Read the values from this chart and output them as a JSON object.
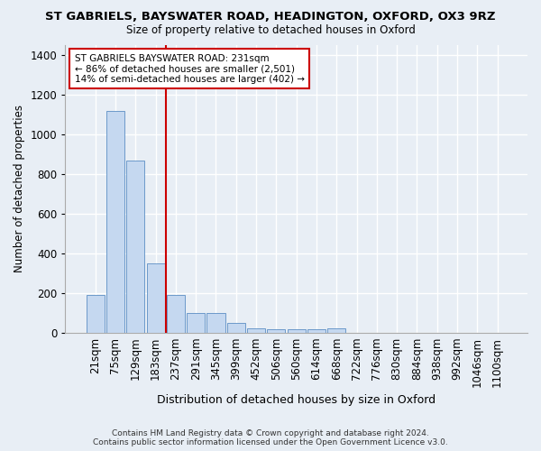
{
  "title_line1": "ST GABRIELS, BAYSWATER ROAD, HEADINGTON, OXFORD, OX3 9RZ",
  "title_line2": "Size of property relative to detached houses in Oxford",
  "xlabel": "Distribution of detached houses by size in Oxford",
  "ylabel": "Number of detached properties",
  "categories": [
    "21sqm",
    "75sqm",
    "129sqm",
    "183sqm",
    "237sqm",
    "291sqm",
    "345sqm",
    "399sqm",
    "452sqm",
    "506sqm",
    "560sqm",
    "614sqm",
    "668sqm",
    "722sqm",
    "776sqm",
    "830sqm",
    "884sqm",
    "938sqm",
    "992sqm",
    "1046sqm",
    "1100sqm"
  ],
  "values": [
    192,
    1120,
    870,
    350,
    190,
    100,
    100,
    50,
    20,
    18,
    18,
    18,
    20,
    0,
    0,
    0,
    0,
    0,
    0,
    0,
    0
  ],
  "bar_color": "#c5d8f0",
  "bar_edge_color": "#5b8ec4",
  "vline_color": "#cc0000",
  "annotation_text": "ST GABRIELS BAYSWATER ROAD: 231sqm\n← 86% of detached houses are smaller (2,501)\n14% of semi-detached houses are larger (402) →",
  "annotation_box_color": "#ffffff",
  "annotation_box_edge": "#cc0000",
  "ylim": [
    0,
    1450
  ],
  "yticks": [
    0,
    200,
    400,
    600,
    800,
    1000,
    1200,
    1400
  ],
  "footer": "Contains HM Land Registry data © Crown copyright and database right 2024.\nContains public sector information licensed under the Open Government Licence v3.0.",
  "bg_color": "#e8eef5",
  "grid_color": "#ffffff"
}
